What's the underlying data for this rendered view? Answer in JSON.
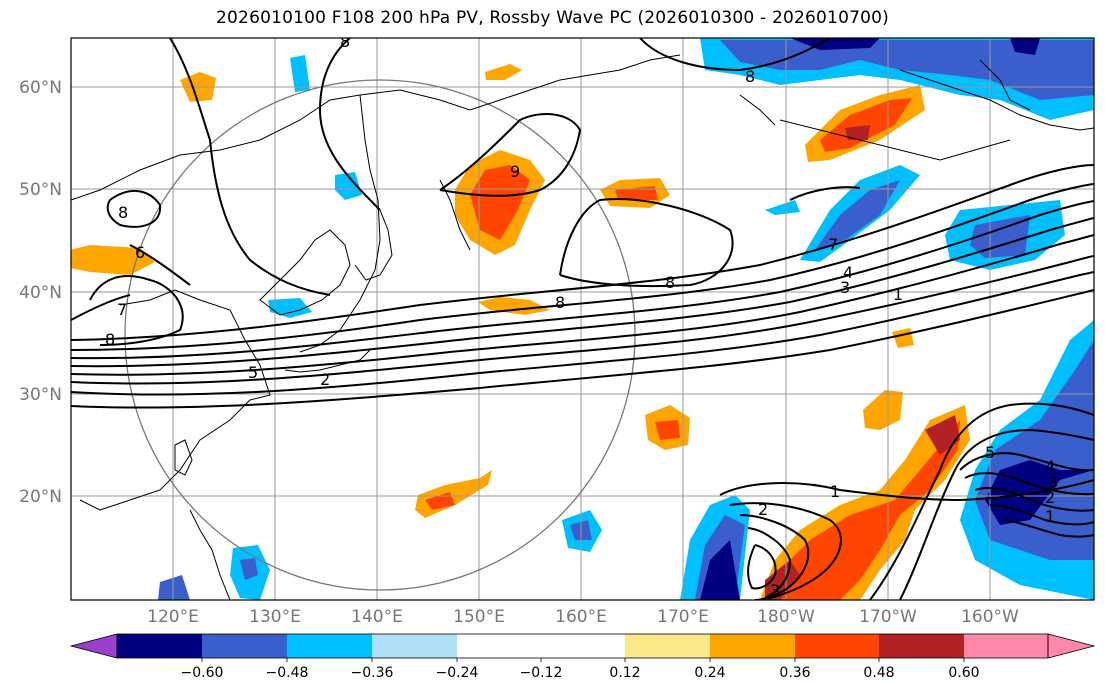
{
  "title": "2026010100 F108 200 hPa PV, Rossby Wave PC (2026010300 - 2026010700)",
  "lon_ticks": [
    "120°E",
    "130°E",
    "140°E",
    "150°E",
    "160°E",
    "170°E",
    "180°W",
    "170°W",
    "160°W"
  ],
  "lat_ticks": [
    "60°N",
    "50°N",
    "40°N",
    "30°N",
    "20°N"
  ],
  "colorbar": {
    "labels": [
      "−0.60",
      "−0.48",
      "−0.36",
      "−0.24",
      "−0.12",
      "0.12",
      "0.24",
      "0.36",
      "0.48",
      "0.60"
    ],
    "colors": [
      "#9b3fce",
      "#000080",
      "#3a5fcd",
      "#00bfff",
      "#b0e0f8",
      "#ffffff",
      "#fde98a",
      "#ffa500",
      "#ff4500",
      "#b22222",
      "#ff88aa"
    ]
  },
  "contour_labels": [
    "8",
    "8",
    "8",
    "9",
    "6",
    "8",
    "7",
    "8",
    "7",
    "8",
    "5",
    "4",
    "3",
    "1",
    "2",
    "1",
    "2",
    "3",
    "5",
    "4",
    "3",
    "2",
    "1"
  ],
  "colors": {
    "ocean": "#ffffff",
    "grid": "#999999",
    "coast": "#000000"
  }
}
